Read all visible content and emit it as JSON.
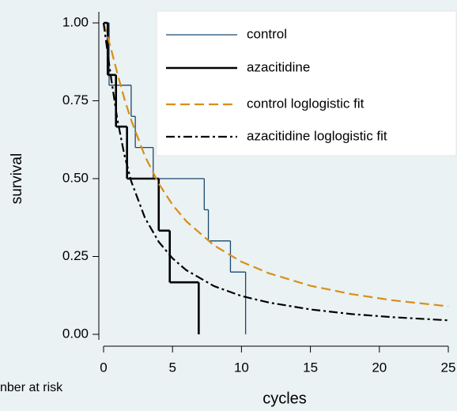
{
  "chart_data": {
    "type": "survival",
    "xlabel": "cycles",
    "ylabel": "survival",
    "annotation": "nber at risk",
    "xlim": [
      0,
      25
    ],
    "ylim": [
      0,
      1
    ],
    "xticks": [
      0,
      5,
      10,
      15,
      20,
      25
    ],
    "yticks": [
      {
        "value": 0,
        "label": "0.00"
      },
      {
        "value": 0.25,
        "label": "0.25"
      },
      {
        "value": 0.5,
        "label": "0.50"
      },
      {
        "value": 0.75,
        "label": "0.75"
      },
      {
        "value": 1,
        "label": "1.00"
      }
    ],
    "series": [
      {
        "name": "control",
        "color": "#1a476f",
        "style": "step",
        "dash": "solid",
        "width": 1.3,
        "x": [
          0,
          0.4,
          2.0,
          2.3,
          3.6,
          7.3,
          7.6,
          9.2,
          10.3
        ],
        "values": [
          1,
          0.8,
          0.7,
          0.6,
          0.5,
          0.4,
          0.3,
          0.2,
          0
        ]
      },
      {
        "name": "azacitidine",
        "color": "#000000",
        "style": "step",
        "dash": "solid",
        "width": 2.6,
        "x": [
          0,
          0.3,
          0.9,
          1.7,
          4.0,
          4.8,
          6.9
        ],
        "values": [
          1,
          0.833,
          0.667,
          0.5,
          0.333,
          0.167,
          0
        ]
      },
      {
        "name": "control loglogistic fit",
        "color": "#d88e18",
        "style": "line",
        "dash": "dashed",
        "width": 2.2,
        "x": [
          0,
          0.5,
          1,
          1.5,
          2,
          3,
          4,
          5,
          6,
          8,
          10,
          12,
          15,
          18,
          21,
          25
        ],
        "values": [
          1,
          0.924,
          0.838,
          0.758,
          0.688,
          0.572,
          0.484,
          0.416,
          0.363,
          0.286,
          0.233,
          0.196,
          0.156,
          0.129,
          0.109,
          0.09
        ]
      },
      {
        "name": "azacitidine loglogistic fit",
        "color": "#000000",
        "style": "line",
        "dash": "dashdot",
        "width": 2.2,
        "x": [
          0,
          0.5,
          1,
          1.5,
          2,
          3,
          4,
          5,
          6,
          8,
          10,
          12,
          15,
          18,
          21,
          25
        ],
        "values": [
          1,
          0.837,
          0.69,
          0.578,
          0.492,
          0.374,
          0.297,
          0.244,
          0.206,
          0.155,
          0.123,
          0.102,
          0.08,
          0.065,
          0.055,
          0.045
        ]
      }
    ]
  }
}
